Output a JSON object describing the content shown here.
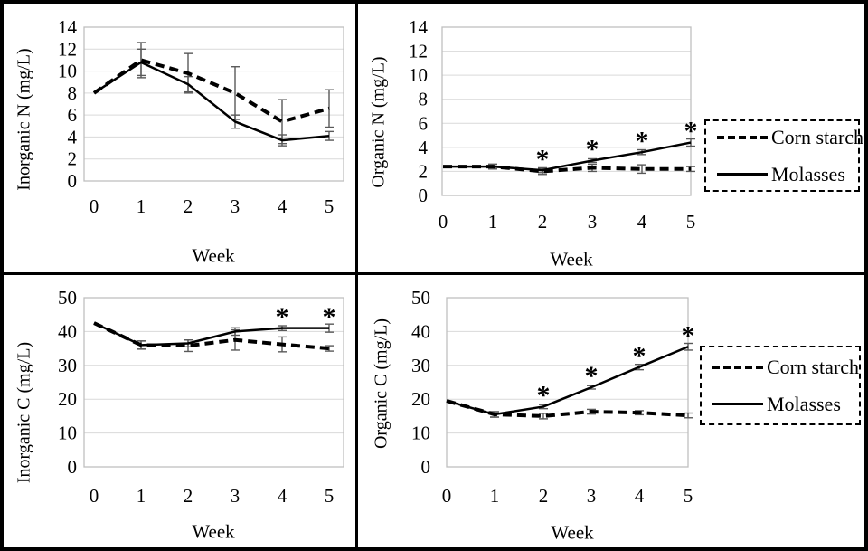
{
  "figure": {
    "description": "2x2 grid of line charts comparing Corn starch and Molasses treatments over 5 weeks",
    "series_names": [
      "Corn starch",
      "Molasses"
    ],
    "x_axis_label": "Week"
  },
  "legend": {
    "corn_starch_label": "Corn starch",
    "molasses_label": "Molasses"
  },
  "colors": {
    "line": "#000000",
    "error_bar": "#595959",
    "gridline": "#d9d9d9",
    "axis_box": "#bfbfbf",
    "text": "#000000",
    "background": "#ffffff",
    "border": "#000000"
  },
  "chart_data": [
    {
      "type": "line",
      "position": "top-left",
      "ylabel": "Inorganic N (mg/L)",
      "xlabel": "Week",
      "x": [
        0,
        1,
        2,
        3,
        4,
        5
      ],
      "ylim": [
        0,
        14
      ],
      "ytick_step": 2,
      "grid": true,
      "legend": false,
      "series": [
        {
          "name": "Corn starch",
          "line_style": "dashed",
          "values": [
            8,
            11,
            9.8,
            8,
            5.4,
            6.6
          ],
          "errors": [
            0,
            1.6,
            1.8,
            2.4,
            2,
            1.7
          ]
        },
        {
          "name": "Molasses",
          "line_style": "solid",
          "values": [
            8,
            10.8,
            8.8,
            5.4,
            3.7,
            4.1
          ],
          "errors": [
            0,
            1.2,
            0.7,
            0.6,
            0.5,
            0.4
          ]
        }
      ],
      "significant_x": []
    },
    {
      "type": "line",
      "position": "top-right",
      "ylabel": "Organic N (mg/L)",
      "xlabel": "Week",
      "x": [
        0,
        1,
        2,
        3,
        4,
        5
      ],
      "ylim": [
        0,
        14
      ],
      "ytick_step": 2,
      "grid": true,
      "legend": true,
      "series": [
        {
          "name": "Corn starch",
          "line_style": "dashed",
          "values": [
            2.4,
            2.4,
            2,
            2.3,
            2.2,
            2.2
          ],
          "errors": [
            0,
            0.2,
            0.25,
            0.3,
            0.35,
            0.2
          ]
        },
        {
          "name": "Molasses",
          "line_style": "solid",
          "values": [
            2.4,
            2.4,
            2.1,
            2.9,
            3.6,
            4.4
          ],
          "errors": [
            0,
            0.2,
            0.2,
            0.15,
            0.2,
            0.3
          ]
        }
      ],
      "significant_x": [
        2,
        3,
        4,
        5
      ],
      "significance_marker": "*"
    },
    {
      "type": "line",
      "position": "bottom-left",
      "ylabel": "Inorganic C (mg/L)",
      "xlabel": "Week",
      "x": [
        0,
        1,
        2,
        3,
        4,
        5
      ],
      "ylim": [
        0,
        50
      ],
      "ytick_step": 10,
      "grid": true,
      "legend": false,
      "series": [
        {
          "name": "Corn starch",
          "line_style": "dashed",
          "values": [
            42.5,
            36,
            35.8,
            37.5,
            36.2,
            35
          ],
          "errors": [
            0,
            1.2,
            1.7,
            3,
            2.2,
            0.8
          ]
        },
        {
          "name": "Molasses",
          "line_style": "solid",
          "values": [
            42.5,
            36,
            36.5,
            40,
            41,
            41
          ],
          "errors": [
            0,
            1.2,
            1,
            1.1,
            0.7,
            1.2
          ]
        }
      ],
      "significant_x": [
        4,
        5
      ],
      "significance_marker": "*"
    },
    {
      "type": "line",
      "position": "bottom-right",
      "ylabel": "Organic C (mg/L)",
      "xlabel": "Week",
      "x": [
        0,
        1,
        2,
        3,
        4,
        5
      ],
      "ylim": [
        0,
        50
      ],
      "ytick_step": 10,
      "grid": true,
      "legend": true,
      "series": [
        {
          "name": "Corn starch",
          "line_style": "dashed",
          "values": [
            19.5,
            15.5,
            15,
            16.3,
            16,
            15.2
          ],
          "errors": [
            0,
            0.8,
            0.8,
            0.7,
            0.6,
            0.7
          ]
        },
        {
          "name": "Molasses",
          "line_style": "solid",
          "values": [
            19.5,
            15.5,
            17.8,
            23.5,
            29.5,
            35.5
          ],
          "errors": [
            0,
            0.8,
            0.6,
            0.5,
            0.8,
            1
          ]
        }
      ],
      "significant_x": [
        2,
        3,
        4,
        5
      ],
      "significance_marker": "*"
    }
  ]
}
